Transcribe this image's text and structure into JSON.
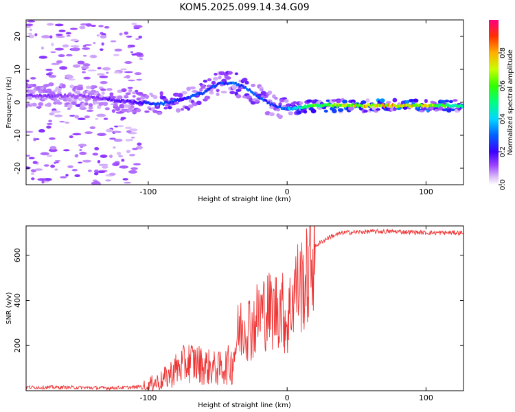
{
  "title": "KOM5.2025.099.14.34.G09",
  "chart_data": [
    {
      "type": "heatmap",
      "xlabel": "Height of straight line (km)",
      "ylabel": "Frequency (Hz)",
      "xlim": [
        -188,
        127
      ],
      "ylim": [
        -25,
        25
      ],
      "xticks": [
        -100,
        0,
        100
      ],
      "yticks": [
        -20,
        -10,
        0,
        10,
        20
      ],
      "colorbar": {
        "label": "Normalized spectral amplitude",
        "range": [
          0,
          1
        ],
        "ticks": [
          0.0,
          0.2,
          0.4,
          0.6,
          0.8
        ]
      },
      "ridge": {
        "x": [
          -188,
          -150,
          -110,
          -90,
          -75,
          -60,
          -50,
          -40,
          -30,
          -20,
          -10,
          0,
          20,
          60,
          100,
          127
        ],
        "freq": [
          2,
          2,
          0,
          -0.5,
          1,
          3,
          5.5,
          6,
          4.5,
          1.5,
          -1,
          -2,
          -1,
          -1,
          -1,
          -1
        ],
        "amplitude": [
          0.15,
          0.12,
          0.2,
          0.3,
          0.25,
          0.3,
          0.28,
          0.3,
          0.3,
          0.3,
          0.25,
          0.35,
          0.6,
          0.8,
          0.75,
          0.5
        ]
      }
    },
    {
      "type": "line",
      "xlabel": "Height of straight line (km)",
      "ylabel": "SNR (v/v)",
      "xlim": [
        -188,
        127
      ],
      "ylim": [
        0,
        730
      ],
      "xticks": [
        -100,
        0,
        100
      ],
      "yticks": [
        200,
        400,
        600
      ],
      "series": [
        {
          "color": "#ee3333",
          "x": [
            -188,
            -160,
            -130,
            -110,
            -100,
            -90,
            -80,
            -70,
            -60,
            -50,
            -40,
            -35,
            -30,
            -25,
            -20,
            -15,
            -10,
            -5,
            0,
            5,
            10,
            15,
            20,
            30,
            40,
            60,
            80,
            100,
            127
          ],
          "values": [
            15,
            15,
            12,
            15,
            25,
            45,
            95,
            130,
            110,
            95,
            120,
            260,
            300,
            280,
            340,
            360,
            350,
            380,
            300,
            450,
            470,
            500,
            640,
            680,
            700,
            705,
            705,
            700,
            700
          ]
        }
      ]
    }
  ]
}
